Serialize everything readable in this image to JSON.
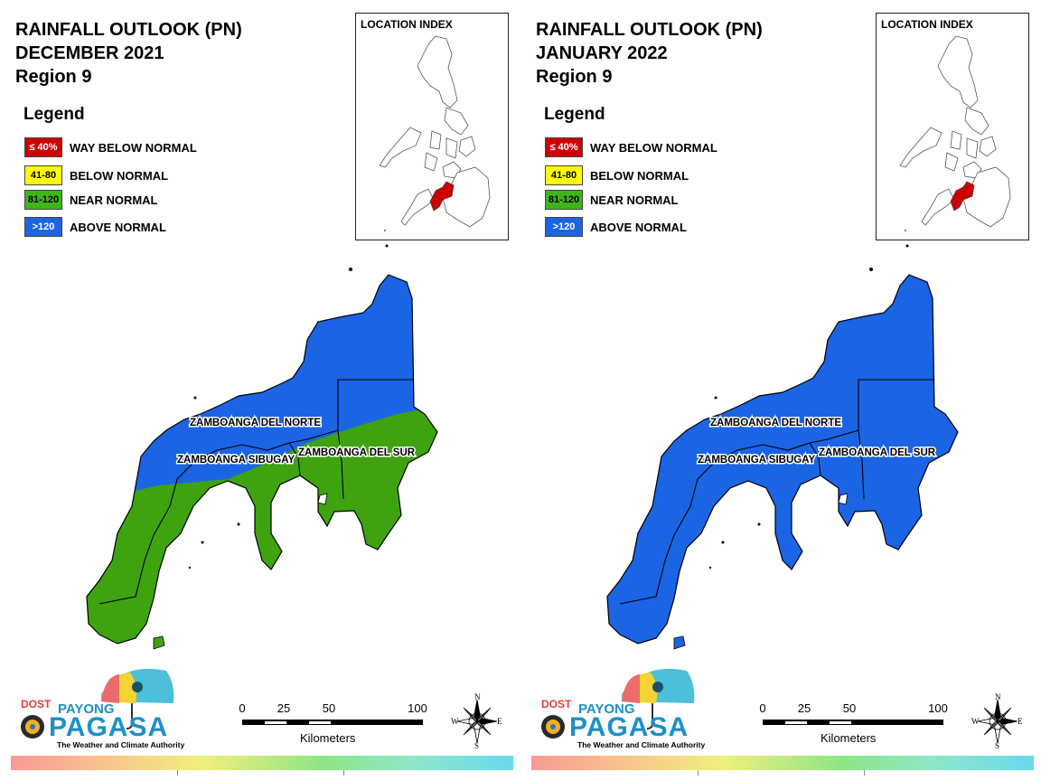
{
  "panels": [
    {
      "title_line1": "RAINFALL OUTLOOK (PN)",
      "title_line2": "DECEMBER 2021",
      "title_line3": "Region 9",
      "provinces": {
        "norte": "ZAMBOANGA DEL NORTE",
        "sibugay": "ZAMBOANGA SIBUGAY",
        "sur": "ZAMBOANGA DEL SUR"
      },
      "region_categories": {
        "north_area": "ABOVE NORMAL",
        "south_area": "NEAR NORMAL"
      }
    },
    {
      "title_line1": "RAINFALL OUTLOOK (PN)",
      "title_line2": "JANUARY 2022",
      "title_line3": "Region 9",
      "provinces": {
        "norte": "ZAMBOANGA DEL NORTE",
        "sibugay": "ZAMBOANGA SIBUGAY",
        "sur": "ZAMBOANGA DEL SUR"
      },
      "region_categories": {
        "north_area": "ABOVE NORMAL",
        "south_area": "ABOVE NORMAL"
      }
    }
  ],
  "legend": {
    "title": "Legend",
    "items": [
      {
        "range": "≤ 40%",
        "label": "WAY BELOW NORMAL",
        "color": "#cc0000",
        "text_color": "#ffffff"
      },
      {
        "range": "41-80",
        "label": "BELOW NORMAL",
        "color": "#ffff00",
        "text_color": "#000000"
      },
      {
        "range": "81-120",
        "label": "NEAR NORMAL",
        "color": "#3fb618",
        "text_color": "#000000"
      },
      {
        "range": ">120",
        "label": "ABOVE NORMAL",
        "color": "#1b64e4",
        "text_color": "#ffffff"
      }
    ]
  },
  "location_index": {
    "title": "LOCATION INDEX",
    "highlight_color": "#cc0000"
  },
  "colors": {
    "above_normal": "#1b64e4",
    "near_normal": "#3fa20f"
  },
  "scale": {
    "ticks": [
      "0",
      "25",
      "50",
      "100"
    ],
    "unit": "Kilometers"
  },
  "compass": {
    "n": "N",
    "s": "S",
    "e": "E",
    "w": "W"
  },
  "logo": {
    "dost": "DOST",
    "payong": "PAYONG",
    "pagasa": "PAGASA",
    "tagline": "The Weather and Climate Authority"
  }
}
